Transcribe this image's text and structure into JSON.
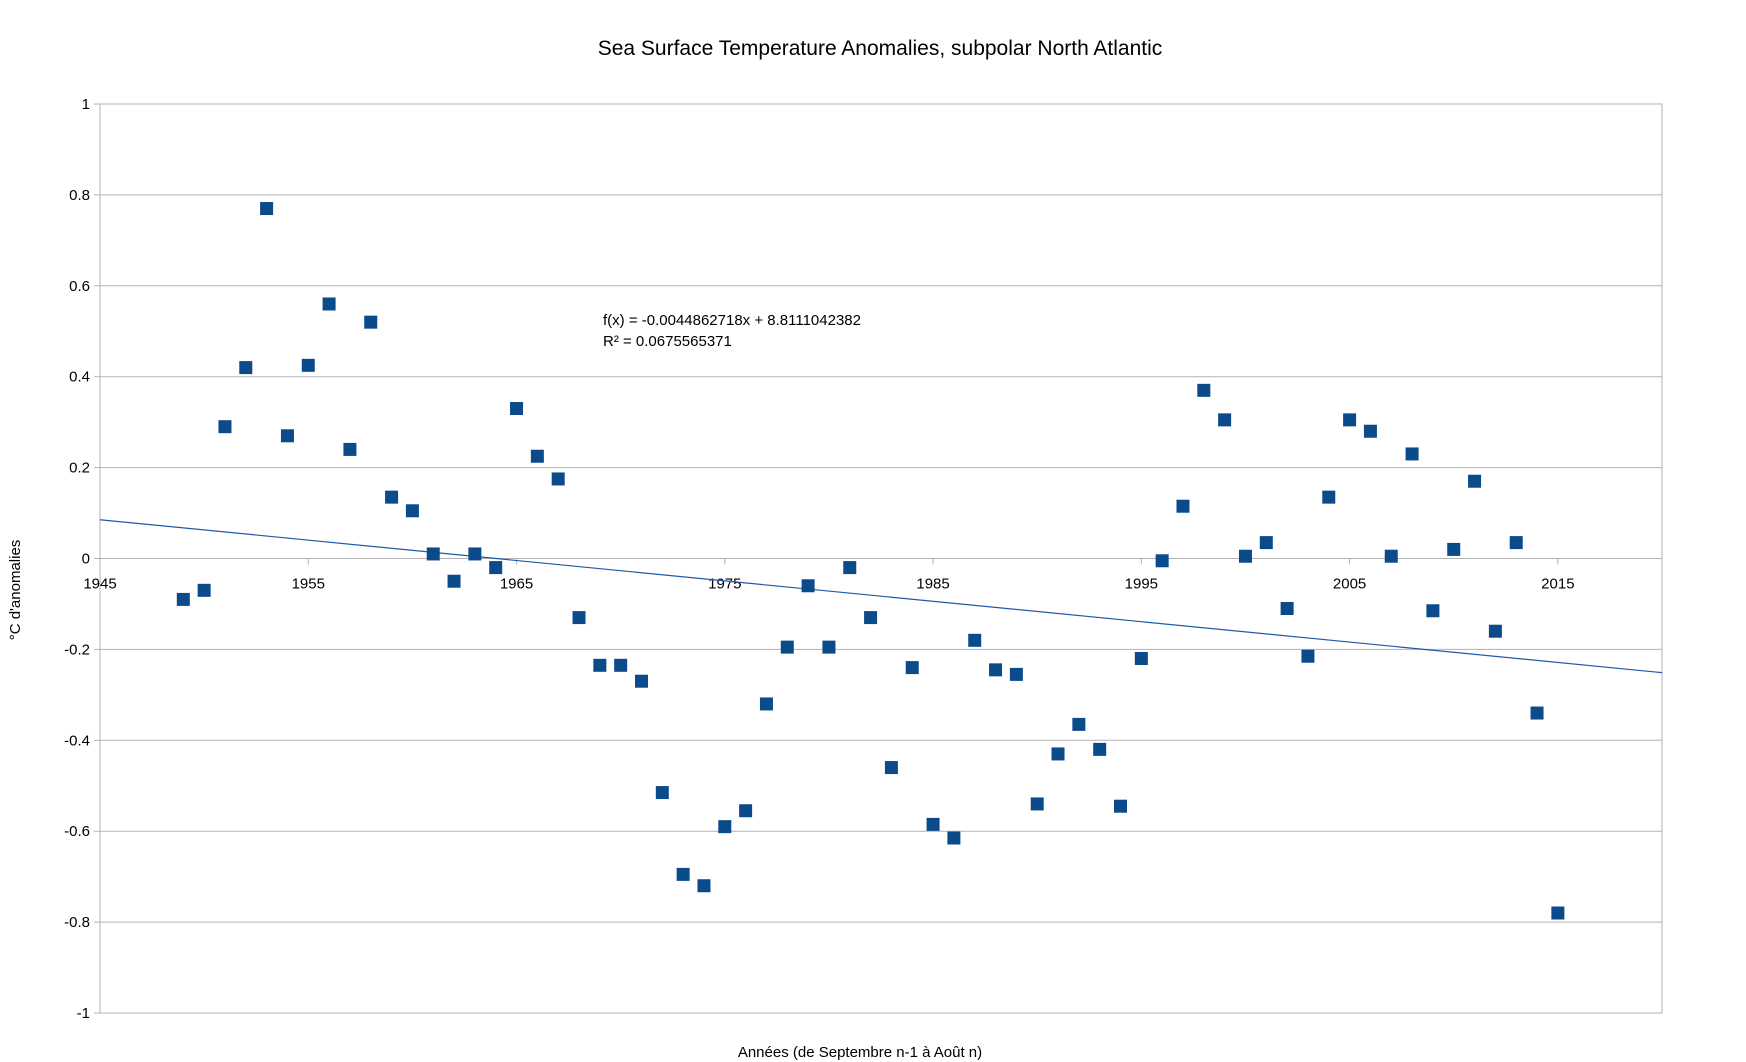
{
  "chart_data": {
    "type": "scatter",
    "title": "Sea Surface Temperature Anomalies, subpolar North Atlantic",
    "xlabel": "Années (de Septembre n-1 à Août n)",
    "ylabel": "°C d'anomalies",
    "xlim": [
      1945,
      2020
    ],
    "ylim": [
      -1,
      1
    ],
    "x_ticks": [
      "1945",
      "1955",
      "1965",
      "1975",
      "1985",
      "1995",
      "2005",
      "2015"
    ],
    "y_ticks": [
      "1",
      "0.8",
      "0.6",
      "0.4",
      "0.2",
      "0",
      "-0.2",
      "-0.4",
      "-0.6",
      "-0.8",
      "-1"
    ],
    "grid": "horizontal",
    "marker_color": "#0b4a8b",
    "trendline_color": "#1f5aa6",
    "trendline": {
      "equation": "f(x) = -0.0044862718x + 8.8111042382",
      "r2": "R² = 0.0675565371",
      "slope": -0.0044862718,
      "intercept": 8.8111042382
    },
    "x": [
      1949,
      1950,
      1951,
      1952,
      1953,
      1954,
      1955,
      1956,
      1957,
      1958,
      1959,
      1960,
      1961,
      1962,
      1963,
      1964,
      1965,
      1966,
      1967,
      1968,
      1969,
      1970,
      1971,
      1972,
      1973,
      1974,
      1975,
      1976,
      1977,
      1978,
      1979,
      1980,
      1981,
      1982,
      1983,
      1984,
      1985,
      1986,
      1987,
      1988,
      1989,
      1990,
      1991,
      1992,
      1993,
      1994,
      1995,
      1996,
      1997,
      1998,
      1999,
      2000,
      2001,
      2002,
      2003,
      2004,
      2005,
      2006,
      2007,
      2008,
      2009,
      2010,
      2011,
      2012,
      2013,
      2014,
      2015
    ],
    "y": [
      -0.09,
      -0.07,
      0.29,
      0.42,
      0.77,
      0.27,
      0.425,
      0.56,
      0.24,
      0.52,
      0.135,
      0.105,
      0.01,
      -0.05,
      0.01,
      -0.02,
      0.33,
      0.225,
      0.175,
      -0.13,
      -0.235,
      -0.235,
      -0.27,
      -0.515,
      -0.695,
      -0.72,
      -0.59,
      -0.555,
      -0.32,
      -0.195,
      -0.06,
      -0.195,
      -0.02,
      -0.13,
      -0.46,
      -0.24,
      -0.585,
      -0.615,
      -0.18,
      -0.245,
      -0.255,
      -0.54,
      -0.43,
      -0.365,
      -0.42,
      -0.545,
      -0.22,
      -0.005,
      0.115,
      0.37,
      0.305,
      0.005,
      0.035,
      -0.11,
      -0.215,
      0.135,
      0.305,
      0.28,
      0.005,
      0.23,
      -0.115,
      0.02,
      0.17,
      -0.16,
      0.035,
      -0.34,
      -0.78
    ]
  }
}
